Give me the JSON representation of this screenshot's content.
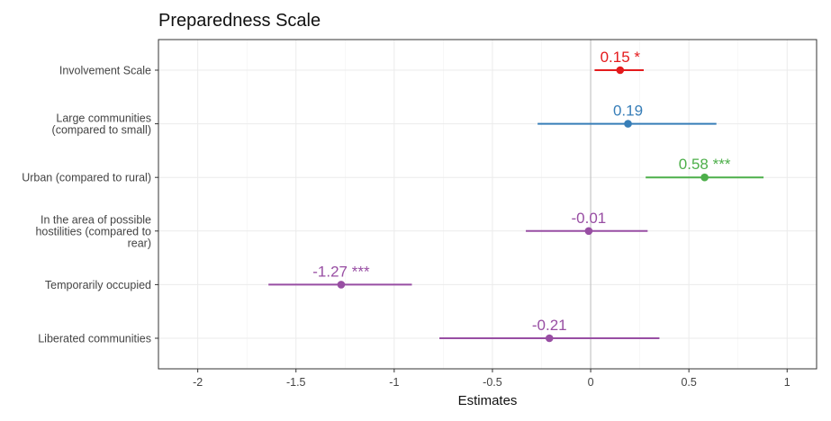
{
  "chart_data": {
    "type": "forest",
    "title": "Preparedness Scale",
    "xlabel": "Estimates",
    "ylabel": "",
    "xlim": [
      -2.2,
      1.15
    ],
    "xticks": [
      -2,
      -1.5,
      -1,
      -0.5,
      0,
      0.5,
      1
    ],
    "xtick_labels": [
      "-2",
      "-1.5",
      "-1",
      "-0.5",
      "0",
      "0.5",
      "1"
    ],
    "grid": true,
    "reference_line": 0,
    "terms": [
      {
        "label_lines": [
          "Involvement Scale"
        ],
        "estimate": 0.15,
        "ci": [
          0.02,
          0.27
        ],
        "label": "0.15 *",
        "color": "#e41a1c"
      },
      {
        "label_lines": [
          "Large communities",
          "(compared to small)"
        ],
        "estimate": 0.19,
        "ci": [
          -0.27,
          0.64
        ],
        "label": "0.19",
        "color": "#377eb8"
      },
      {
        "label_lines": [
          "Urban (compared to rural)"
        ],
        "estimate": 0.58,
        "ci": [
          0.28,
          0.88
        ],
        "label": "0.58 ***",
        "color": "#4daf4a"
      },
      {
        "label_lines": [
          "In the area of possible",
          "hostilities (compared to",
          "rear)"
        ],
        "estimate": -0.01,
        "ci": [
          -0.33,
          0.29
        ],
        "label": "-0.01",
        "color": "#984ea3"
      },
      {
        "label_lines": [
          "Temporarily occupied"
        ],
        "estimate": -1.27,
        "ci": [
          -1.64,
          -0.91
        ],
        "label": "-1.27 ***",
        "color": "#984ea3"
      },
      {
        "label_lines": [
          "Liberated communities"
        ],
        "estimate": -0.21,
        "ci": [
          -0.77,
          0.35
        ],
        "label": "-0.21",
        "color": "#984ea3"
      }
    ]
  }
}
